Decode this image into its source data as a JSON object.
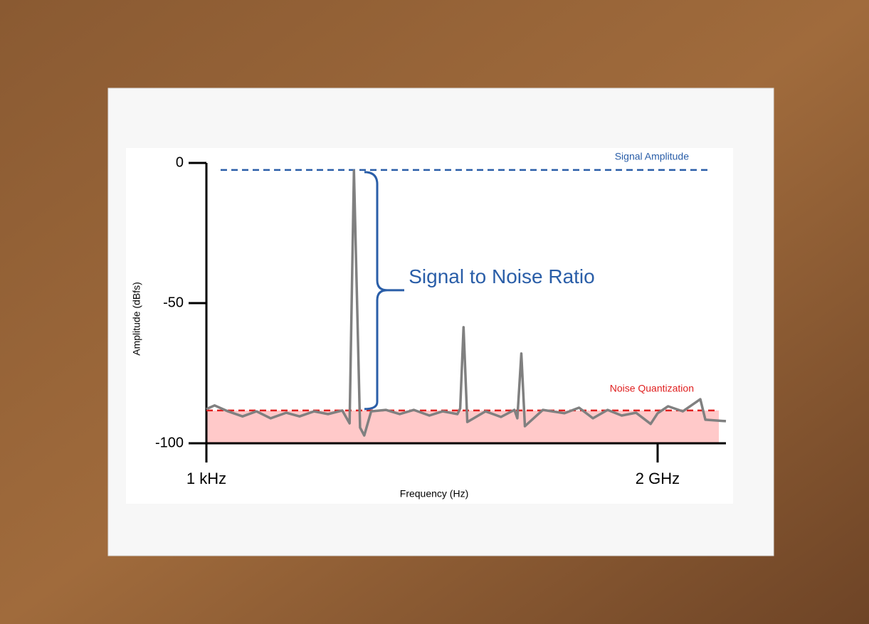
{
  "chart_data": {
    "type": "line",
    "y_label": "Amplitude (dBfs)",
    "x_label": "Frequency (Hz)",
    "log_x": true,
    "color": "#808080",
    "x": [
      1000,
      1300,
      2000,
      3200,
      5000,
      7900,
      13000,
      20000,
      32000,
      50000,
      79000,
      100000,
      115000,
      140000,
      160000,
      200000,
      320000,
      500000,
      790000,
      1300000,
      2000000,
      3200000,
      3500000,
      3900000,
      4400000,
      7900000,
      13000000,
      20000000,
      22000000,
      25000000,
      28000000,
      50000000,
      100000000,
      160000000,
      250000000,
      400000000,
      630000000,
      1000000000,
      1600000000,
      2000000000,
      2800000000,
      4500000000,
      7900000000,
      9300000000,
      18000000000
    ],
    "values": [
      -87.8,
      -86.5,
      -88.6,
      -90.4,
      -88.6,
      -91.1,
      -89.1,
      -90.4,
      -88.6,
      -89.6,
      -88.3,
      -92.9,
      -2.8,
      -94.4,
      -97.2,
      -88.6,
      -88.1,
      -89.6,
      -88.1,
      -90.1,
      -88.6,
      -89.6,
      -87.6,
      -58.6,
      -92.4,
      -88.6,
      -90.6,
      -88.1,
      -91.1,
      -68,
      -93.9,
      -88.1,
      -89.3,
      -87.3,
      -91.1,
      -88.1,
      -90.1,
      -89.1,
      -93.1,
      -89.3,
      -86.8,
      -88.6,
      -84.3,
      -91.6,
      -92.1
    ],
    "xlim": [
      1000,
      18000000000
    ],
    "xticks": [
      {
        "value": 1000,
        "label": "1 kHz"
      },
      {
        "value": 2000000000,
        "label": "2 GHz"
      }
    ],
    "ylim": [
      -100,
      0
    ],
    "yticks": [
      0,
      -50,
      -100
    ],
    "reference_lines": [
      {
        "label": "Signal Amplitude",
        "value": -2.5,
        "color": "#2a5ea8"
      },
      {
        "label": "Noise Quantization",
        "value": -88.3,
        "color": "#e02020"
      }
    ],
    "noise_band_color": "#ffc9c9",
    "annotation": "Signal to Noise Ratio"
  }
}
